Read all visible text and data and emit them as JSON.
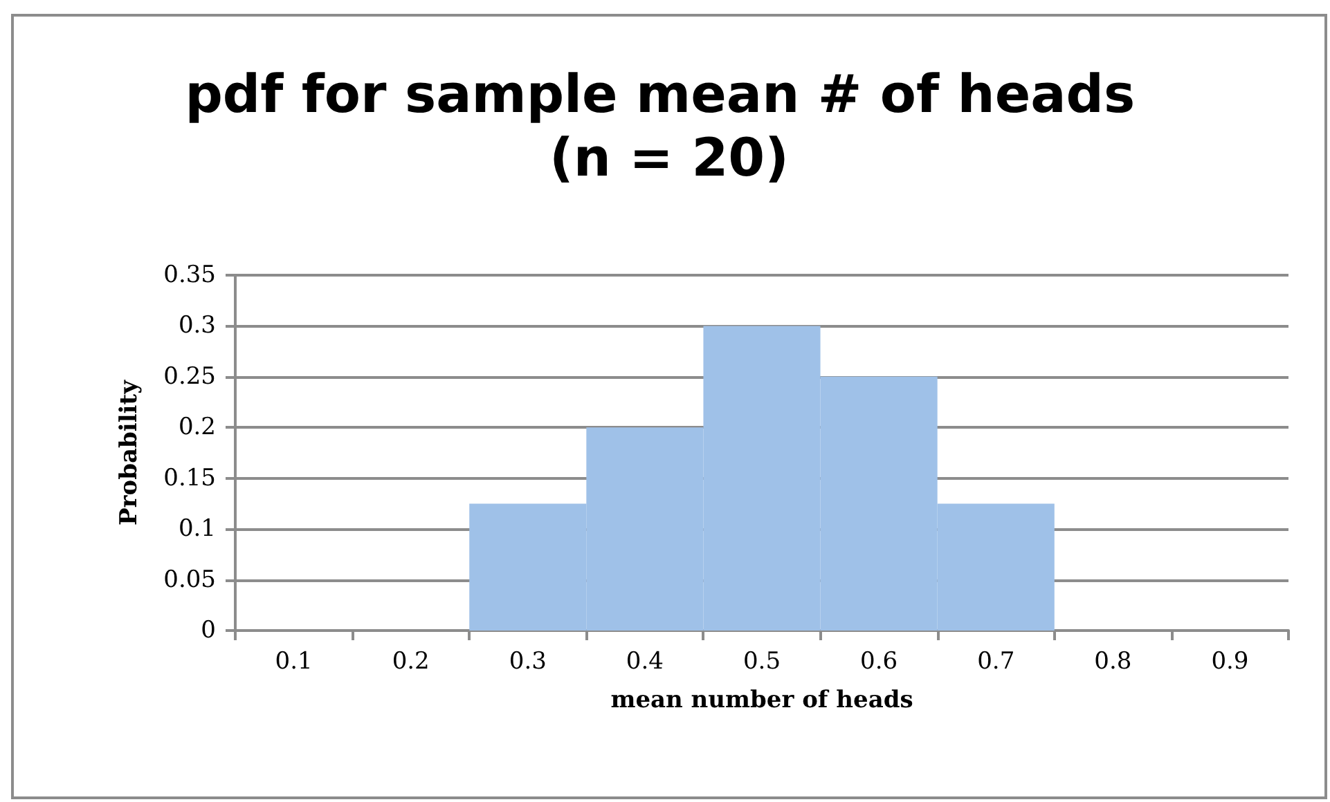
{
  "chart_data": {
    "type": "bar",
    "title": "pdf for sample mean # of heads (n = 20)",
    "xlabel": "mean number of heads",
    "ylabel": "Probability",
    "categories": [
      "0.1",
      "0.2",
      "0.3",
      "0.4",
      "0.5",
      "0.6",
      "0.7",
      "0.8",
      "0.9"
    ],
    "values": [
      0,
      0,
      0.125,
      0.2,
      0.3,
      0.25,
      0.125,
      0,
      0
    ],
    "color": "#9fc1e8",
    "ylim": [
      0,
      0.35
    ],
    "yticks": [
      0,
      0.05,
      0.1,
      0.15,
      0.2,
      0.25,
      0.3,
      0.35
    ],
    "grid": "y"
  }
}
